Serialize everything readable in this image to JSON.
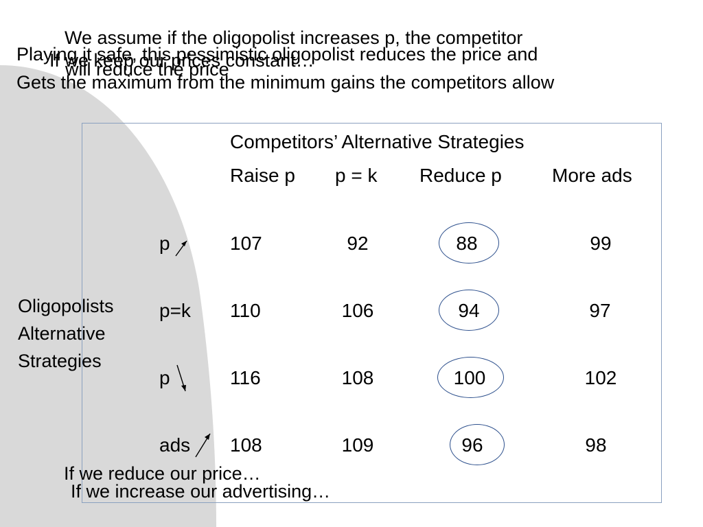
{
  "slide": {
    "overlay_texts": [
      "We assume if the oligopolist increases p, the competitor",
      "Playing it safe, this pessimistic oligopolist reduces the price and",
      "If we keep our prices constant…",
      "will reduce the price",
      "Gets the maximum from the minimum gains the competitors allow"
    ],
    "table": {
      "header_title": "Competitors’ Alternative Strategies",
      "columns": [
        "Raise p",
        "p = k",
        "Reduce p",
        "More ads"
      ],
      "row_group_label": [
        "Oligopolists",
        "Alternative",
        "Strategies"
      ],
      "rows": [
        {
          "label": "p",
          "arrow": "up",
          "values": [
            "107",
            "92",
            "88",
            "99"
          ]
        },
        {
          "label": "p=k",
          "arrow": "none",
          "values": [
            "110",
            "106",
            "94",
            "97"
          ]
        },
        {
          "label": "p",
          "arrow": "down",
          "values": [
            "116",
            "108",
            "100",
            "102"
          ]
        },
        {
          "label": "ads",
          "arrow": "up",
          "values": [
            "108",
            "109",
            "96",
            "98"
          ]
        }
      ],
      "circled_column": "Reduce p"
    },
    "bottom_texts": [
      "If we reduce our price…",
      "If we increase our advertising…"
    ],
    "colors": {
      "background_shape": "#d9d9d9",
      "box_border": "#8aa0bf",
      "ellipse_border": "#2c4f8c"
    }
  }
}
